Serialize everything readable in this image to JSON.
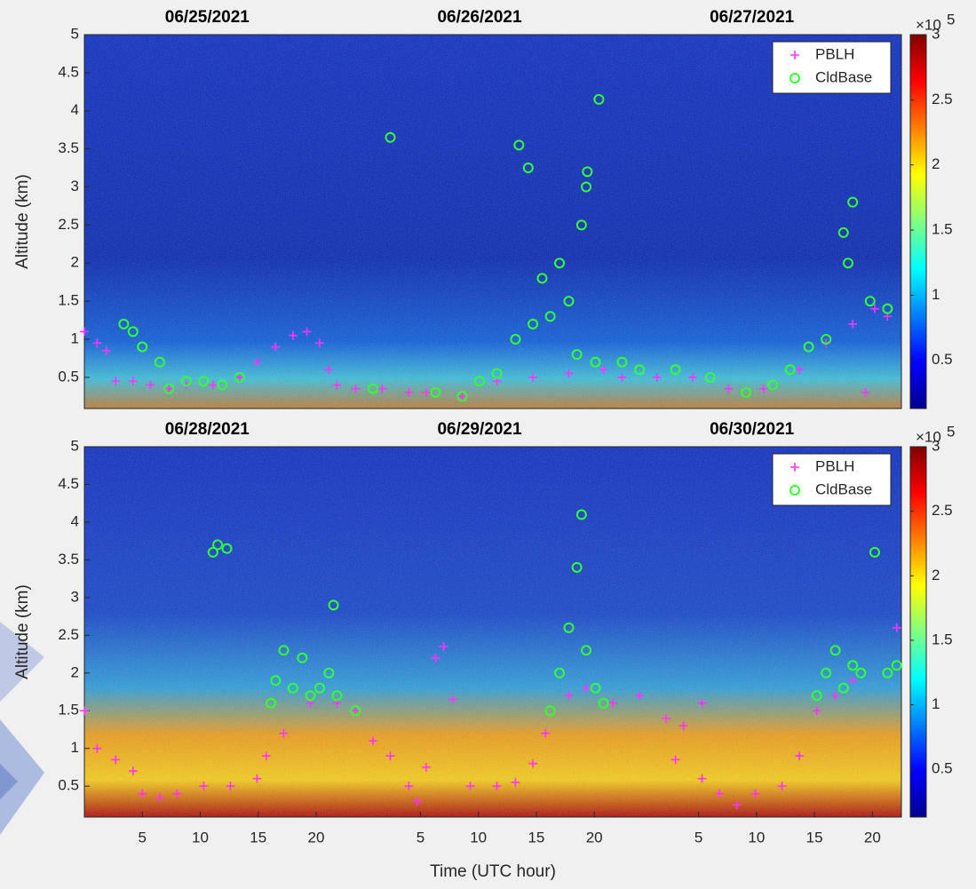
{
  "chart_data": [
    {
      "type": "scatter",
      "date_labels": [
        "06/25/2021",
        "06/26/2021",
        "06/27/2021"
      ],
      "ylabel": "Altitude (km)",
      "xlim": [
        0,
        70.5
      ],
      "ylim": [
        0.09,
        5
      ],
      "yticks": [
        0.5,
        1,
        1.5,
        2,
        2.5,
        3,
        3.5,
        4,
        4.5,
        5
      ],
      "colorbar": {
        "multiplier": "×10",
        "exponent": "5",
        "lim": [
          0.13,
          3
        ],
        "ticks": [
          0.5,
          1,
          1.5,
          2,
          2.5,
          3
        ],
        "colors": [
          "#00008f",
          "#0000ff",
          "#0080ff",
          "#00ffff",
          "#80ff80",
          "#ffff00",
          "#ff8000",
          "#ff0000",
          "#800000"
        ]
      },
      "legend": "upper right",
      "series": [
        {
          "name": "PBLH",
          "color": "#ff33ff",
          "marker": "+",
          "x": [
            0,
            1.1,
            1.9,
            2.7,
            4.2,
            5.7,
            7.3,
            8.8,
            11.1,
            13.4,
            14.9,
            16.5,
            18.0,
            19.2,
            20.3,
            21.1,
            21.8,
            23.4,
            25.7,
            28.0,
            29.5,
            32.6,
            35.6,
            38.7,
            41.8,
            44.8,
            46.4,
            49.4,
            52.5,
            55.6,
            58.6,
            61.7,
            64.0,
            66.3,
            67.4,
            68.2,
            69.3
          ],
          "values": [
            1.1,
            0.95,
            0.85,
            0.45,
            0.45,
            0.4,
            0.35,
            0.4,
            0.4,
            0.5,
            0.7,
            0.9,
            1.05,
            1.1,
            0.95,
            0.6,
            0.4,
            0.35,
            0.35,
            0.3,
            0.3,
            0.25,
            0.45,
            0.5,
            0.55,
            0.6,
            0.5,
            0.5,
            0.5,
            0.35,
            0.35,
            0.6,
            0.95,
            1.2,
            0.3,
            1.4,
            1.3
          ]
        },
        {
          "name": "CldBase",
          "color": "#33ff33",
          "marker": "o",
          "x": [
            3.4,
            4.2,
            5.0,
            6.5,
            7.3,
            8.8,
            10.3,
            11.9,
            13.4,
            24.9,
            26.4,
            30.3,
            32.6,
            34.1,
            35.6,
            37.2,
            37.5,
            38.3,
            38.7,
            39.5,
            40.2,
            41.0,
            41.8,
            42.5,
            42.9,
            43.3,
            43.4,
            44.1,
            44.4,
            46.4,
            47.9,
            51.0,
            54.0,
            57.1,
            59.4,
            60.9,
            62.5,
            64.0,
            65.5,
            65.9,
            66.3,
            67.8,
            69.3
          ],
          "values": [
            1.2,
            1.1,
            0.9,
            0.7,
            0.35,
            0.45,
            0.45,
            0.4,
            0.5,
            0.35,
            3.65,
            0.3,
            0.25,
            0.45,
            0.55,
            1.0,
            3.55,
            3.25,
            1.2,
            1.8,
            1.3,
            2.0,
            1.5,
            0.8,
            2.5,
            3.0,
            3.2,
            0.7,
            4.15,
            0.7,
            0.6,
            0.6,
            0.5,
            0.3,
            0.4,
            0.6,
            0.9,
            1.0,
            2.4,
            2.0,
            2.8,
            1.5,
            1.4
          ]
        }
      ]
    },
    {
      "type": "scatter",
      "date_labels": [
        "06/28/2021",
        "06/29/2021",
        "06/30/2021"
      ],
      "ylabel": "Altitude (km)",
      "xlabel": "Time (UTC hour)",
      "xlim": [
        0,
        70.5
      ],
      "xticks": [
        5,
        10,
        15,
        20,
        {
          "value": 29,
          "label": "5"
        },
        {
          "value": 34,
          "label": "10"
        },
        {
          "value": 39,
          "label": "15"
        },
        {
          "value": 44,
          "label": "20"
        },
        {
          "value": 53,
          "label": "5"
        },
        {
          "value": 58,
          "label": "10"
        },
        {
          "value": 63,
          "label": "15"
        },
        {
          "value": 68,
          "label": "20"
        }
      ],
      "ylim": [
        0.09,
        5
      ],
      "yticks": [
        0.5,
        1,
        1.5,
        2,
        2.5,
        3,
        3.5,
        4,
        4.5,
        5
      ],
      "colorbar": {
        "multiplier": "×10",
        "exponent": "5",
        "lim": [
          0.13,
          3
        ],
        "ticks": [
          0.5,
          1,
          1.5,
          2,
          2.5,
          3
        ],
        "colors": [
          "#00008f",
          "#0000ff",
          "#0080ff",
          "#00ffff",
          "#80ff80",
          "#ffff00",
          "#ff8000",
          "#ff0000",
          "#800000"
        ]
      },
      "legend": "upper right",
      "series": [
        {
          "name": "PBLH",
          "color": "#ff33ff",
          "marker": "+",
          "x": [
            0,
            1.1,
            2.7,
            4.2,
            5.0,
            6.5,
            8.0,
            10.3,
            12.6,
            14.9,
            15.7,
            17.2,
            19.5,
            21.8,
            23.4,
            24.9,
            26.4,
            28.0,
            28.7,
            29.5,
            30.3,
            31.0,
            31.8,
            33.3,
            35.6,
            37.2,
            38.7,
            39.8,
            41.8,
            43.3,
            45.6,
            47.9,
            50.2,
            51.0,
            51.7,
            53.3,
            53.3,
            54.8,
            56.3,
            57.9,
            60.2,
            61.7,
            63.2,
            64.8,
            66.3,
            70.1
          ],
          "values": [
            1.5,
            1.0,
            0.85,
            0.7,
            0.4,
            0.35,
            0.4,
            0.5,
            0.5,
            0.6,
            0.9,
            1.2,
            1.6,
            1.6,
            1.5,
            1.1,
            0.9,
            0.5,
            0.3,
            0.75,
            2.2,
            2.35,
            1.65,
            0.5,
            0.5,
            0.55,
            0.8,
            1.2,
            1.7,
            1.8,
            1.6,
            1.7,
            1.4,
            0.85,
            1.3,
            1.6,
            0.6,
            0.4,
            0.25,
            0.4,
            0.5,
            0.9,
            1.5,
            1.7,
            1.9,
            2.6
          ]
        },
        {
          "name": "CldBase",
          "color": "#33ff33",
          "marker": "o",
          "x": [
            11.1,
            11.5,
            12.3,
            16.1,
            16.5,
            17.2,
            18.0,
            18.8,
            19.5,
            20.3,
            21.1,
            21.5,
            21.8,
            23.4,
            40.2,
            41.0,
            41.8,
            42.5,
            42.9,
            43.3,
            44.1,
            44.8,
            63.2,
            64.0,
            64.8,
            65.5,
            66.3,
            67.0,
            68.2,
            69.3,
            70.1
          ],
          "values": [
            3.6,
            3.7,
            3.65,
            1.6,
            1.9,
            2.3,
            1.8,
            2.2,
            1.7,
            1.8,
            2.0,
            2.9,
            1.7,
            1.5,
            1.5,
            2.0,
            2.6,
            3.4,
            4.1,
            2.3,
            1.8,
            1.6,
            1.7,
            2.0,
            2.3,
            1.8,
            2.1,
            2.0,
            3.6,
            2.0,
            2.1
          ]
        }
      ]
    }
  ]
}
